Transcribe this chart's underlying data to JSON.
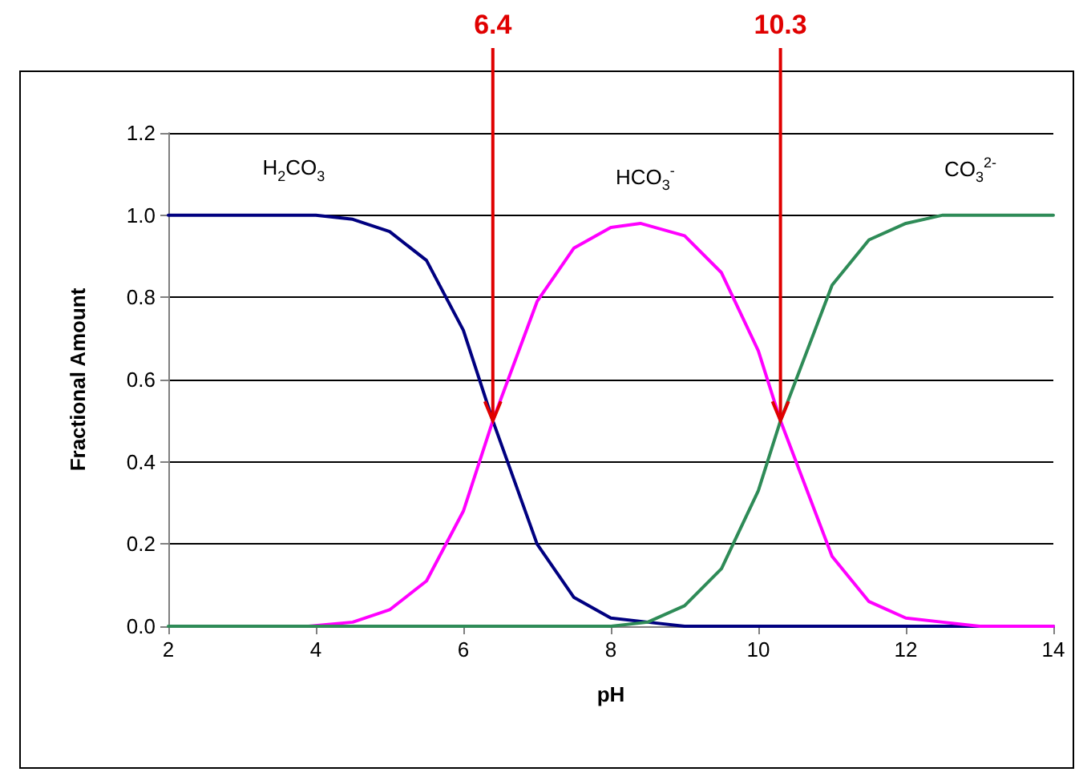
{
  "chart_data": {
    "type": "line",
    "xlabel": "pH",
    "ylabel": "Fractional Amount",
    "xlim": [
      2,
      14
    ],
    "xticks": [
      2,
      4,
      6,
      8,
      10,
      12,
      14
    ],
    "ylim": [
      0,
      1.2
    ],
    "yticks": [
      {
        "value": 0,
        "label": "0.0"
      },
      {
        "value": 0.2,
        "label": "0.2"
      },
      {
        "value": 0.4,
        "label": "0.4"
      },
      {
        "value": 0.6,
        "label": "0.6"
      },
      {
        "value": 0.8,
        "label": "0.8"
      },
      {
        "value": 1,
        "label": "1.0"
      },
      {
        "value": 1.2,
        "label": "1.2"
      }
    ],
    "grid": "y",
    "legend": false,
    "marker": "none",
    "line_style": "solid",
    "series": [
      {
        "name": "H$_{2}$CO$_{3}$",
        "color": "#000080",
        "x": [
          2,
          3,
          4,
          4.5,
          5,
          5.5,
          6,
          6.4,
          7,
          7.5,
          8,
          8.5,
          9,
          10,
          12,
          14
        ],
        "values": [
          1.0,
          1.0,
          1.0,
          0.99,
          0.96,
          0.89,
          0.72,
          0.5,
          0.2,
          0.07,
          0.02,
          0.01,
          0,
          0,
          0,
          0
        ]
      },
      {
        "name": "HCO$_{3}$$^{-}$",
        "color": "#ff00ff",
        "x": [
          3.9,
          4.5,
          5,
          5.5,
          6,
          6.4,
          7,
          7.5,
          8,
          8.4,
          9,
          9.5,
          10,
          10.3,
          11,
          11.5,
          12,
          12.5,
          13,
          14
        ],
        "values": [
          0,
          0.01,
          0.04,
          0.11,
          0.28,
          0.5,
          0.79,
          0.92,
          0.97,
          0.98,
          0.95,
          0.86,
          0.67,
          0.5,
          0.17,
          0.06,
          0.02,
          0.01,
          0,
          0
        ]
      },
      {
        "name": "CO$_{3}$$^{2-}$",
        "color": "#2e8b57",
        "x": [
          2,
          4,
          6,
          8,
          8.5,
          9,
          9.5,
          10,
          10.3,
          11,
          11.5,
          12,
          12.5,
          13,
          14
        ],
        "values": [
          0,
          0,
          0,
          0,
          0.01,
          0.05,
          0.14,
          0.33,
          0.5,
          0.83,
          0.94,
          0.98,
          1.0,
          1.0,
          1.0
        ]
      }
    ],
    "annotations": [
      {
        "text": "6.4",
        "x": 6.4,
        "y": 0.5
      },
      {
        "text": "10.3",
        "x": 10.3,
        "y": 0.5
      }
    ]
  }
}
